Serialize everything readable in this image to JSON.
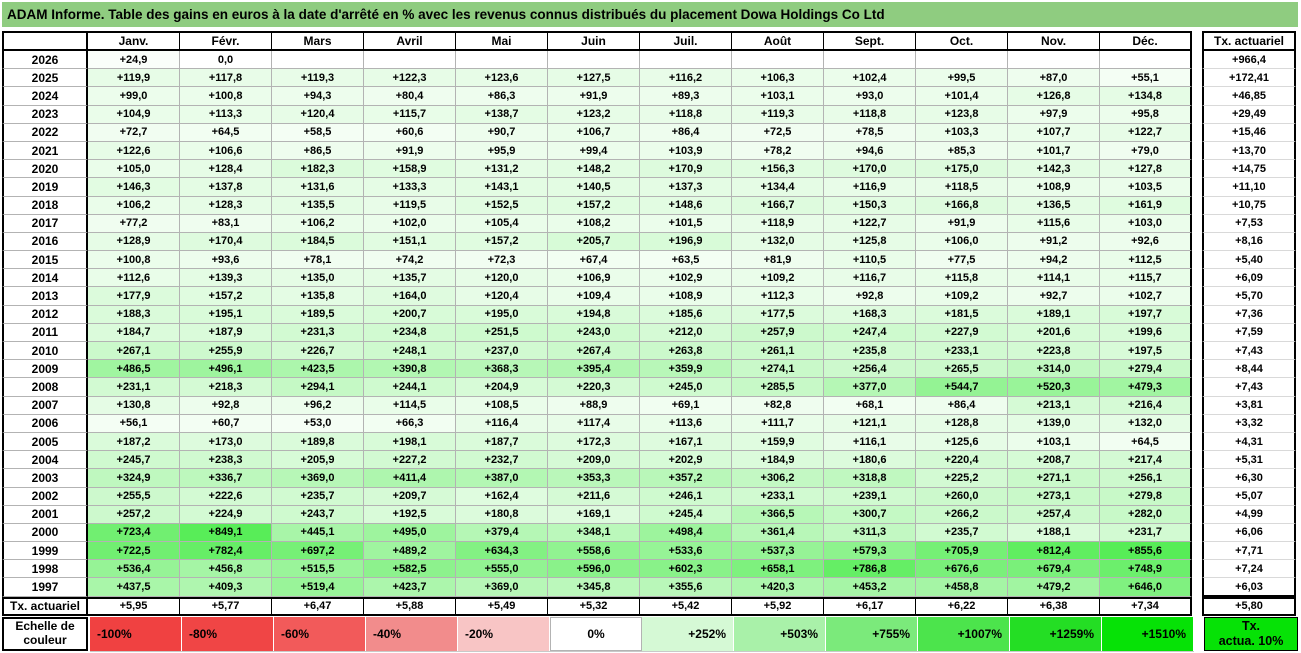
{
  "title": "ADAM Informe. Table des gains en euros à la date d'arrêté en % avec les revenus connus distribués du placement Dowa Holdings Co Ltd",
  "columns": [
    "Janv.",
    "Févr.",
    "Mars",
    "Avril",
    "Mai",
    "Juin",
    "Juil.",
    "Août",
    "Sept.",
    "Oct.",
    "Nov.",
    "Déc."
  ],
  "tx_header": "Tx. actuariel",
  "rows": [
    {
      "year": "2026",
      "values": [
        "+24,9",
        "0,0",
        "",
        "",
        "",
        "",
        "",
        "",
        "",
        "",
        "",
        ""
      ],
      "tx": "+966,4"
    },
    {
      "year": "2025",
      "values": [
        "+119,9",
        "+117,8",
        "+119,3",
        "+122,3",
        "+123,6",
        "+127,5",
        "+116,2",
        "+106,3",
        "+102,4",
        "+99,5",
        "+87,0",
        "+55,1"
      ],
      "tx": "+172,41"
    },
    {
      "year": "2024",
      "values": [
        "+99,0",
        "+100,8",
        "+94,3",
        "+80,4",
        "+86,3",
        "+91,9",
        "+89,3",
        "+103,1",
        "+93,0",
        "+101,4",
        "+126,8",
        "+134,8"
      ],
      "tx": "+46,85"
    },
    {
      "year": "2023",
      "values": [
        "+104,9",
        "+113,3",
        "+120,4",
        "+115,7",
        "+138,7",
        "+123,2",
        "+118,8",
        "+119,3",
        "+118,8",
        "+123,8",
        "+97,9",
        "+95,8"
      ],
      "tx": "+29,49"
    },
    {
      "year": "2022",
      "values": [
        "+72,7",
        "+64,5",
        "+58,5",
        "+60,6",
        "+90,7",
        "+106,7",
        "+86,4",
        "+72,5",
        "+78,5",
        "+103,3",
        "+107,7",
        "+122,7"
      ],
      "tx": "+15,46"
    },
    {
      "year": "2021",
      "values": [
        "+122,6",
        "+106,6",
        "+86,5",
        "+91,9",
        "+95,9",
        "+99,4",
        "+103,9",
        "+78,2",
        "+94,6",
        "+85,3",
        "+101,7",
        "+79,0"
      ],
      "tx": "+13,70"
    },
    {
      "year": "2020",
      "values": [
        "+105,0",
        "+128,4",
        "+182,3",
        "+158,9",
        "+131,2",
        "+148,2",
        "+170,9",
        "+156,3",
        "+170,0",
        "+175,0",
        "+142,3",
        "+127,8"
      ],
      "tx": "+14,75"
    },
    {
      "year": "2019",
      "values": [
        "+146,3",
        "+137,8",
        "+131,6",
        "+133,3",
        "+143,1",
        "+140,5",
        "+137,3",
        "+134,4",
        "+116,9",
        "+118,5",
        "+108,9",
        "+103,5"
      ],
      "tx": "+11,10"
    },
    {
      "year": "2018",
      "values": [
        "+106,2",
        "+128,3",
        "+135,5",
        "+119,5",
        "+152,5",
        "+157,2",
        "+148,6",
        "+166,7",
        "+150,3",
        "+166,8",
        "+136,5",
        "+161,9"
      ],
      "tx": "+10,75"
    },
    {
      "year": "2017",
      "values": [
        "+77,2",
        "+83,1",
        "+106,2",
        "+102,0",
        "+105,4",
        "+108,2",
        "+101,5",
        "+118,9",
        "+122,7",
        "+91,9",
        "+115,6",
        "+103,0"
      ],
      "tx": "+7,53"
    },
    {
      "year": "2016",
      "values": [
        "+128,9",
        "+170,4",
        "+184,5",
        "+151,1",
        "+157,2",
        "+205,7",
        "+196,9",
        "+132,0",
        "+125,8",
        "+106,0",
        "+91,2",
        "+92,6"
      ],
      "tx": "+8,16"
    },
    {
      "year": "2015",
      "values": [
        "+100,8",
        "+93,6",
        "+78,1",
        "+74,2",
        "+72,3",
        "+67,4",
        "+63,5",
        "+81,9",
        "+110,5",
        "+77,5",
        "+94,2",
        "+112,5"
      ],
      "tx": "+5,40"
    },
    {
      "year": "2014",
      "values": [
        "+112,6",
        "+139,3",
        "+135,0",
        "+135,7",
        "+120,0",
        "+106,9",
        "+102,9",
        "+109,2",
        "+116,7",
        "+115,8",
        "+114,1",
        "+115,7"
      ],
      "tx": "+6,09"
    },
    {
      "year": "2013",
      "values": [
        "+177,9",
        "+157,2",
        "+135,8",
        "+164,0",
        "+120,4",
        "+109,4",
        "+108,9",
        "+112,3",
        "+92,8",
        "+109,2",
        "+92,7",
        "+102,7"
      ],
      "tx": "+5,70"
    },
    {
      "year": "2012",
      "values": [
        "+188,3",
        "+195,1",
        "+189,5",
        "+200,7",
        "+195,0",
        "+194,8",
        "+185,6",
        "+177,5",
        "+168,3",
        "+181,5",
        "+189,1",
        "+197,7"
      ],
      "tx": "+7,36"
    },
    {
      "year": "2011",
      "values": [
        "+184,7",
        "+187,9",
        "+231,3",
        "+234,8",
        "+251,5",
        "+243,0",
        "+212,0",
        "+257,9",
        "+247,4",
        "+227,9",
        "+201,6",
        "+199,6"
      ],
      "tx": "+7,59"
    },
    {
      "year": "2010",
      "values": [
        "+267,1",
        "+255,9",
        "+226,7",
        "+248,1",
        "+237,0",
        "+267,4",
        "+263,8",
        "+261,1",
        "+235,8",
        "+233,1",
        "+223,8",
        "+197,5"
      ],
      "tx": "+7,43"
    },
    {
      "year": "2009",
      "values": [
        "+486,5",
        "+496,1",
        "+423,5",
        "+390,8",
        "+368,3",
        "+395,4",
        "+359,9",
        "+274,1",
        "+256,4",
        "+265,5",
        "+314,0",
        "+279,4"
      ],
      "tx": "+8,44"
    },
    {
      "year": "2008",
      "values": [
        "+231,1",
        "+218,3",
        "+294,1",
        "+244,1",
        "+204,9",
        "+220,3",
        "+245,0",
        "+285,5",
        "+377,0",
        "+544,7",
        "+520,3",
        "+479,3"
      ],
      "tx": "+7,43"
    },
    {
      "year": "2007",
      "values": [
        "+130,8",
        "+92,8",
        "+96,2",
        "+114,5",
        "+108,5",
        "+88,9",
        "+69,1",
        "+82,8",
        "+68,1",
        "+86,4",
        "+213,1",
        "+216,4"
      ],
      "tx": "+3,81"
    },
    {
      "year": "2006",
      "values": [
        "+56,1",
        "+60,7",
        "+53,0",
        "+66,3",
        "+116,4",
        "+117,4",
        "+113,6",
        "+111,7",
        "+121,1",
        "+128,8",
        "+139,0",
        "+132,0"
      ],
      "tx": "+3,32"
    },
    {
      "year": "2005",
      "values": [
        "+187,2",
        "+173,0",
        "+189,8",
        "+198,1",
        "+187,7",
        "+172,3",
        "+167,1",
        "+159,9",
        "+116,1",
        "+125,6",
        "+103,1",
        "+64,5"
      ],
      "tx": "+4,31"
    },
    {
      "year": "2004",
      "values": [
        "+245,7",
        "+238,3",
        "+205,9",
        "+227,2",
        "+232,7",
        "+209,0",
        "+202,9",
        "+184,9",
        "+180,6",
        "+220,4",
        "+208,7",
        "+217,4"
      ],
      "tx": "+5,31"
    },
    {
      "year": "2003",
      "values": [
        "+324,9",
        "+336,7",
        "+369,0",
        "+411,4",
        "+387,0",
        "+353,3",
        "+357,2",
        "+306,2",
        "+318,8",
        "+225,2",
        "+271,1",
        "+256,1"
      ],
      "tx": "+6,30"
    },
    {
      "year": "2002",
      "values": [
        "+255,5",
        "+222,6",
        "+235,7",
        "+209,7",
        "+162,4",
        "+211,6",
        "+246,1",
        "+233,1",
        "+239,1",
        "+260,0",
        "+273,1",
        "+279,8"
      ],
      "tx": "+5,07"
    },
    {
      "year": "2001",
      "values": [
        "+257,2",
        "+224,9",
        "+243,7",
        "+192,5",
        "+180,8",
        "+169,1",
        "+245,4",
        "+366,5",
        "+300,7",
        "+266,2",
        "+257,4",
        "+282,0"
      ],
      "tx": "+4,99"
    },
    {
      "year": "2000",
      "values": [
        "+723,4",
        "+849,1",
        "+445,1",
        "+495,0",
        "+379,4",
        "+348,1",
        "+498,4",
        "+361,4",
        "+311,3",
        "+235,7",
        "+188,1",
        "+231,7"
      ],
      "tx": "+6,06"
    },
    {
      "year": "1999",
      "values": [
        "+722,5",
        "+782,4",
        "+697,2",
        "+489,2",
        "+634,3",
        "+558,6",
        "+533,6",
        "+537,3",
        "+579,3",
        "+705,9",
        "+812,4",
        "+855,6"
      ],
      "tx": "+7,71"
    },
    {
      "year": "1998",
      "values": [
        "+536,4",
        "+456,8",
        "+515,5",
        "+582,5",
        "+555,0",
        "+596,0",
        "+602,3",
        "+658,1",
        "+786,8",
        "+676,6",
        "+679,4",
        "+748,9"
      ],
      "tx": "+7,24"
    },
    {
      "year": "1997",
      "values": [
        "+437,5",
        "+409,3",
        "+519,4",
        "+423,7",
        "+369,0",
        "+345,8",
        "+355,6",
        "+420,3",
        "+453,2",
        "+458,8",
        "+479,2",
        "+646,0"
      ],
      "tx": "+6,03"
    }
  ],
  "tx_row": {
    "label": "Tx. actuariel",
    "values": [
      "+5,95",
      "+5,77",
      "+6,47",
      "+5,88",
      "+5,49",
      "+5,32",
      "+5,42",
      "+5,92",
      "+6,17",
      "+6,22",
      "+6,38",
      "+7,34"
    ],
    "tx": "+5,80"
  },
  "legend": {
    "label": "Echelle de couleur",
    "entries": [
      {
        "label": "-100%",
        "color": "#F04141",
        "align": "left"
      },
      {
        "label": "-80%",
        "color": "#F04545",
        "align": "left"
      },
      {
        "label": "-60%",
        "color": "#F25A5A",
        "align": "left"
      },
      {
        "label": "-40%",
        "color": "#F28C8C",
        "align": "left"
      },
      {
        "label": "-20%",
        "color": "#F8C5C5",
        "align": "left"
      },
      {
        "label": "0%",
        "color": "#FFFFFF",
        "align": "center"
      },
      {
        "label": "+252%",
        "color": "#D5F9D5",
        "align": "right"
      },
      {
        "label": "+503%",
        "color": "#A9F1A9",
        "align": "right"
      },
      {
        "label": "+755%",
        "color": "#7BEA7B",
        "align": "right"
      },
      {
        "label": "+1007%",
        "color": "#4CE44C",
        "align": "right"
      },
      {
        "label": "+1259%",
        "color": "#24DE24",
        "align": "right"
      },
      {
        "label": "+1510%",
        "color": "#06E206",
        "align": "right"
      }
    ],
    "tx_box": {
      "line1": "Tx.",
      "line2": "actua. 10%",
      "color": "#06E206"
    }
  },
  "colors": {
    "title_bg": "#8FCC80",
    "grid_line": "#b3b3b3",
    "ramp_green": "#00E300",
    "ramp_max_value": 1300,
    "negative_red": "#F04141"
  }
}
